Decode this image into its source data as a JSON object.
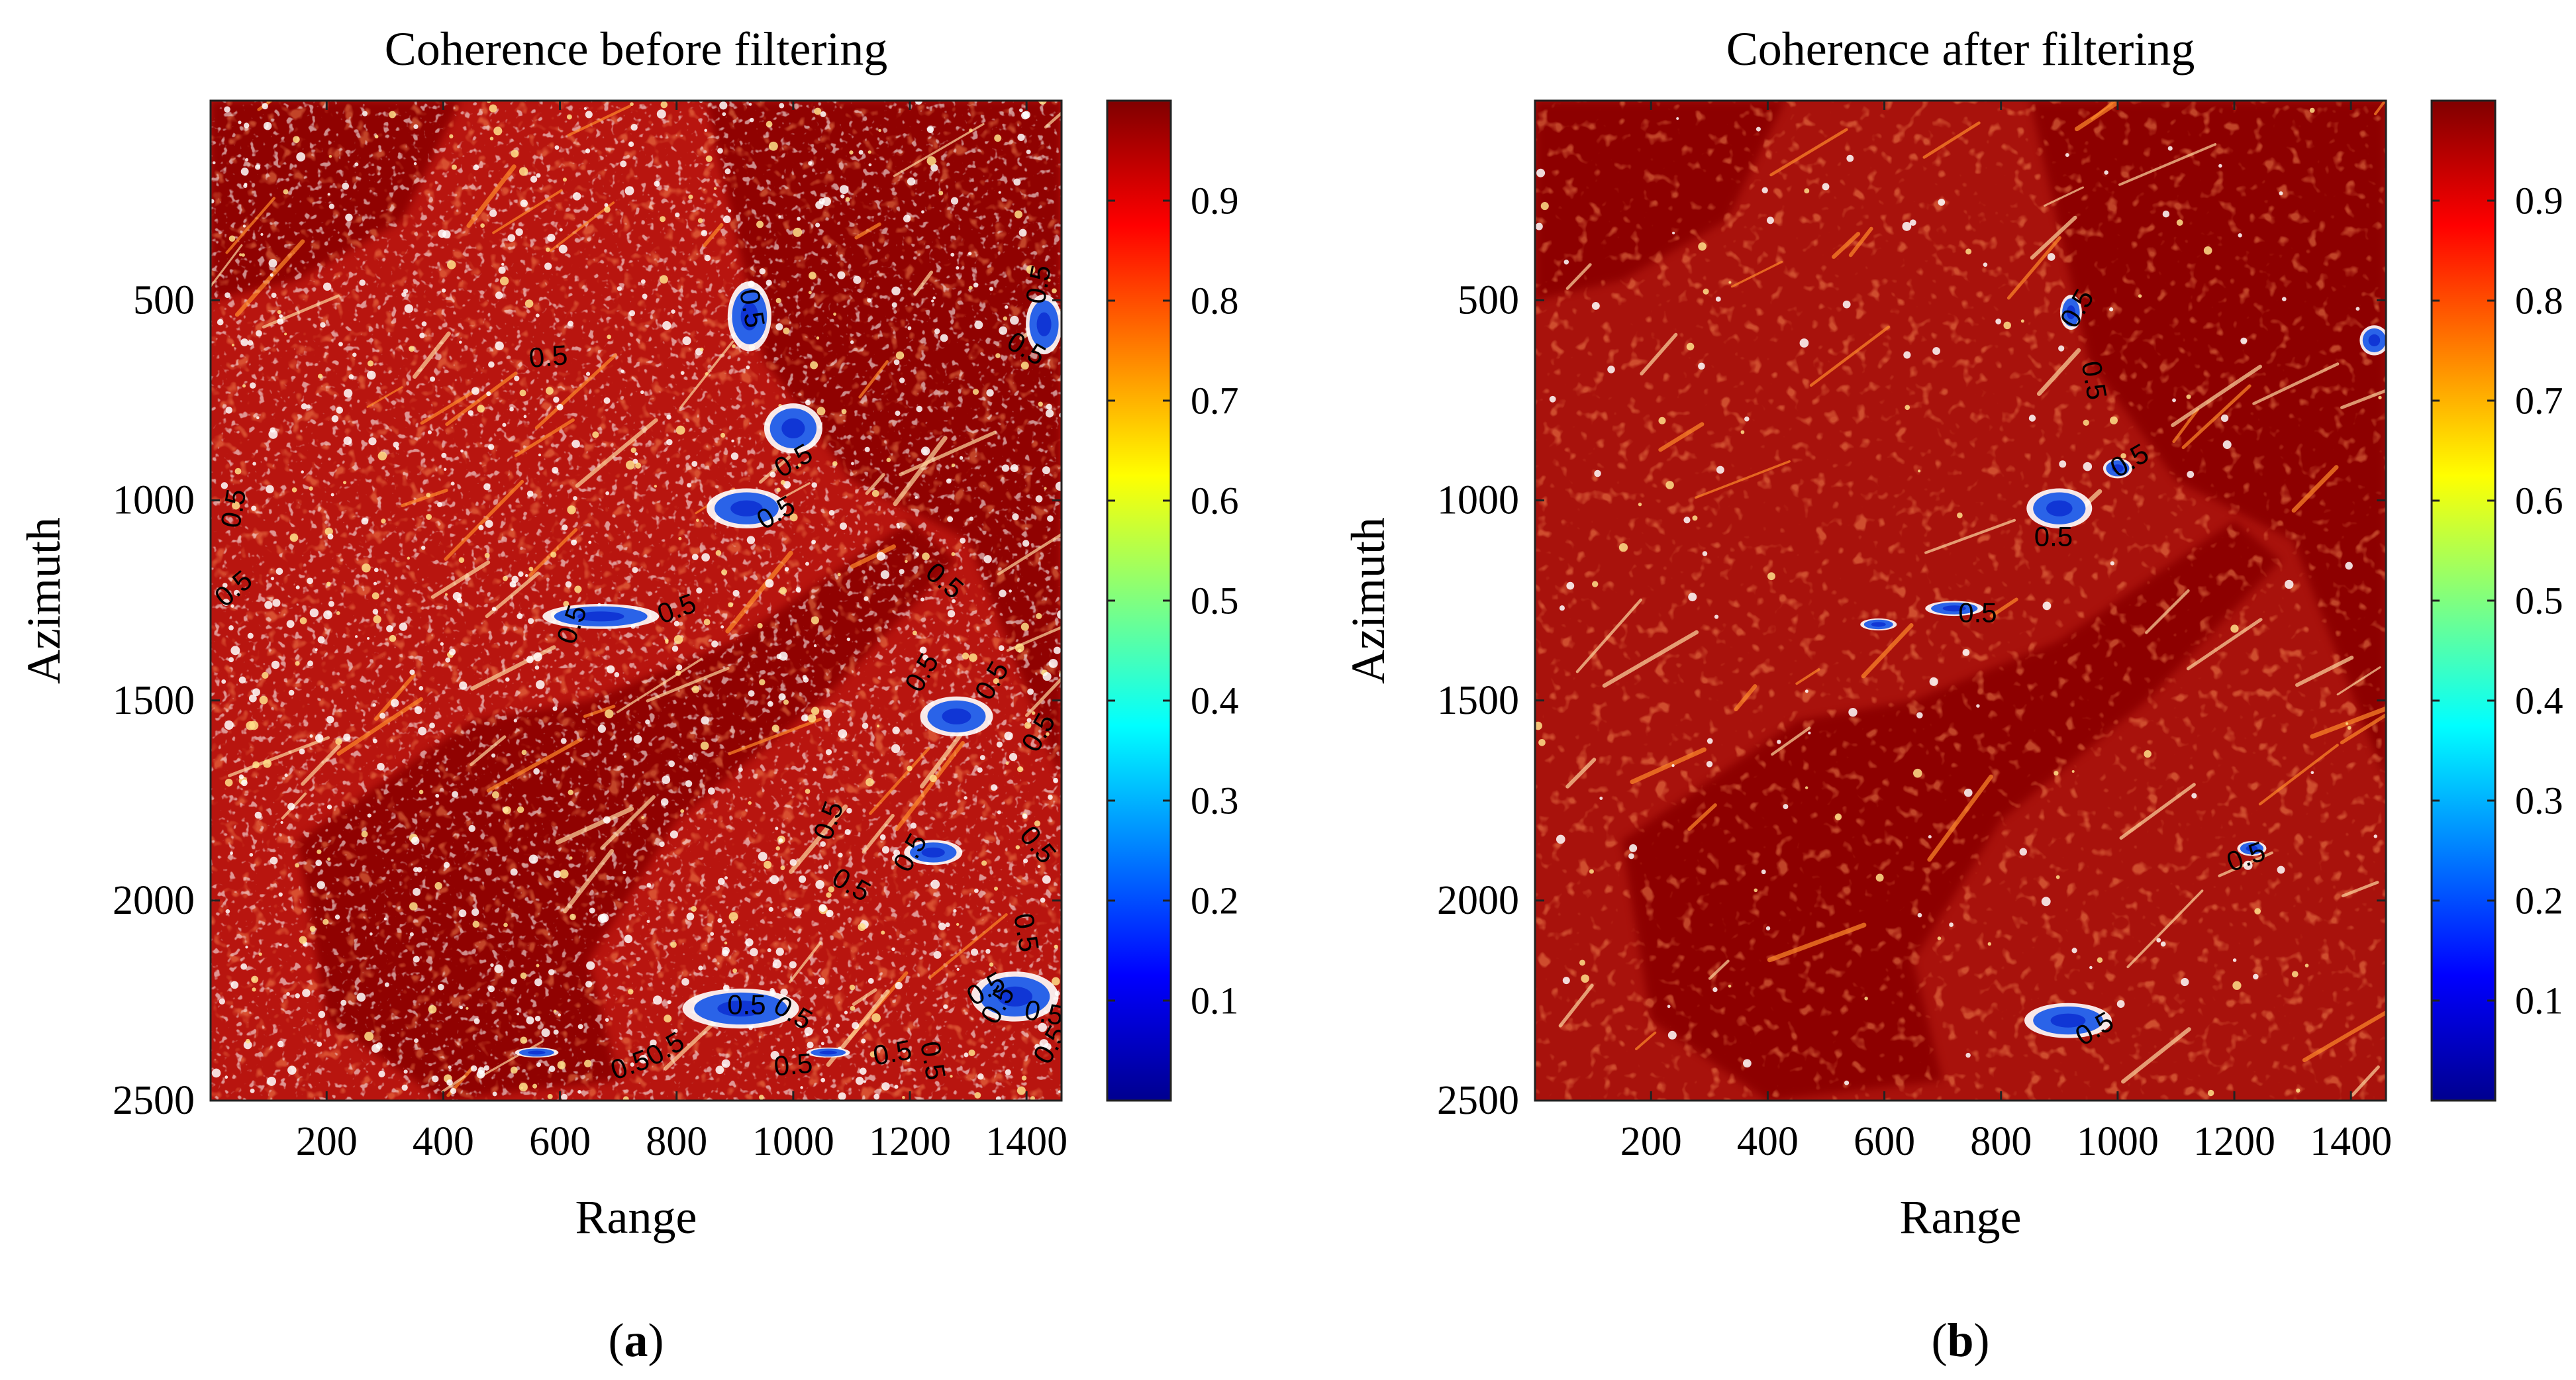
{
  "chart_data": [
    {
      "type": "heatmap",
      "panel_label": "(a)",
      "panel_letter": "a",
      "title": "Coherence before filtering",
      "xlabel": "Range",
      "ylabel": "Azimuth",
      "xlim": [
        1,
        1460
      ],
      "ylim": [
        1,
        2500
      ],
      "xticks": [
        200,
        400,
        600,
        800,
        1000,
        1200,
        1400
      ],
      "yticks": [
        500,
        1000,
        1500,
        2000,
        2500
      ],
      "colorbar": {
        "colormap": "jet",
        "range": [
          0,
          1
        ],
        "ticks": [
          0.1,
          0.2,
          0.3,
          0.4,
          0.5,
          0.6,
          0.7,
          0.8,
          0.9
        ]
      },
      "contour_level": 0.5,
      "contour_label": "0.5",
      "low_coherence_regions": [
        {
          "x": 925,
          "y": 540,
          "rx": 30,
          "ry": 70
        },
        {
          "x": 1000,
          "y": 820,
          "rx": 40,
          "ry": 50
        },
        {
          "x": 920,
          "y": 1020,
          "rx": 55,
          "ry": 40
        },
        {
          "x": 670,
          "y": 1290,
          "rx": 80,
          "ry": 25
        },
        {
          "x": 1430,
          "y": 560,
          "rx": 25,
          "ry": 60
        },
        {
          "x": 1240,
          "y": 1880,
          "rx": 40,
          "ry": 25
        },
        {
          "x": 910,
          "y": 2270,
          "rx": 80,
          "ry": 40
        },
        {
          "x": 1380,
          "y": 2240,
          "rx": 60,
          "ry": 50
        },
        {
          "x": 1280,
          "y": 1540,
          "rx": 50,
          "ry": 40
        },
        {
          "x": 560,
          "y": 2380,
          "rx": 30,
          "ry": 10
        },
        {
          "x": 1060,
          "y": 2380,
          "rx": 30,
          "ry": 10
        }
      ],
      "contour_labels": [
        {
          "x": 580,
          "y": 640,
          "angle": -5
        },
        {
          "x": 930,
          "y": 520,
          "angle": 80
        },
        {
          "x": 1420,
          "y": 460,
          "angle": -80
        },
        {
          "x": 1400,
          "y": 620,
          "angle": 30
        },
        {
          "x": 1000,
          "y": 900,
          "angle": -30
        },
        {
          "x": 970,
          "y": 1030,
          "angle": -30
        },
        {
          "x": 40,
          "y": 1020,
          "angle": -80
        },
        {
          "x": 40,
          "y": 1220,
          "angle": -40
        },
        {
          "x": 620,
          "y": 1310,
          "angle": -70
        },
        {
          "x": 800,
          "y": 1270,
          "angle": -20
        },
        {
          "x": 1260,
          "y": 1200,
          "angle": 40
        },
        {
          "x": 1220,
          "y": 1430,
          "angle": -60
        },
        {
          "x": 1340,
          "y": 1450,
          "angle": -60
        },
        {
          "x": 1420,
          "y": 1580,
          "angle": -60
        },
        {
          "x": 1060,
          "y": 1800,
          "angle": -70
        },
        {
          "x": 1100,
          "y": 1960,
          "angle": 30
        },
        {
          "x": 1200,
          "y": 1880,
          "angle": -60
        },
        {
          "x": 1420,
          "y": 1860,
          "angle": 50
        },
        {
          "x": 1400,
          "y": 2080,
          "angle": 80
        },
        {
          "x": 920,
          "y": 2260,
          "angle": 0
        },
        {
          "x": 1000,
          "y": 2280,
          "angle": 30
        },
        {
          "x": 720,
          "y": 2410,
          "angle": -20
        },
        {
          "x": 780,
          "y": 2370,
          "angle": -30
        },
        {
          "x": 1000,
          "y": 2410,
          "angle": -5
        },
        {
          "x": 1170,
          "y": 2380,
          "angle": -10
        },
        {
          "x": 1240,
          "y": 2400,
          "angle": 80
        },
        {
          "x": 1350,
          "y": 2260,
          "angle": -60
        },
        {
          "x": 1430,
          "y": 2280,
          "angle": 10
        },
        {
          "x": 1330,
          "y": 2220,
          "angle": -30
        },
        {
          "x": 1440,
          "y": 2360,
          "angle": -60
        }
      ]
    },
    {
      "type": "heatmap",
      "panel_label": "(b)",
      "panel_letter": "b",
      "title": "Coherence after filtering",
      "xlabel": "Range",
      "ylabel": "Azimuth",
      "xlim": [
        1,
        1460
      ],
      "ylim": [
        1,
        2500
      ],
      "xticks": [
        200,
        400,
        600,
        800,
        1000,
        1200,
        1400
      ],
      "yticks": [
        500,
        1000,
        1500,
        2000,
        2500
      ],
      "colorbar": {
        "colormap": "jet",
        "range": [
          0,
          1
        ],
        "ticks": [
          0.1,
          0.2,
          0.3,
          0.4,
          0.5,
          0.6,
          0.7,
          0.8,
          0.9
        ]
      },
      "contour_level": 0.5,
      "contour_label": "0.5",
      "low_coherence_regions": [
        {
          "x": 900,
          "y": 1020,
          "rx": 45,
          "ry": 40
        },
        {
          "x": 720,
          "y": 1270,
          "rx": 40,
          "ry": 15
        },
        {
          "x": 590,
          "y": 1310,
          "rx": 25,
          "ry": 12
        },
        {
          "x": 915,
          "y": 2300,
          "rx": 60,
          "ry": 35
        },
        {
          "x": 1230,
          "y": 1870,
          "rx": 20,
          "ry": 15
        },
        {
          "x": 1440,
          "y": 600,
          "rx": 20,
          "ry": 30
        },
        {
          "x": 920,
          "y": 530,
          "rx": 15,
          "ry": 35
        },
        {
          "x": 1000,
          "y": 920,
          "rx": 20,
          "ry": 20
        }
      ],
      "contour_labels": [
        {
          "x": 930,
          "y": 520,
          "angle": -60
        },
        {
          "x": 960,
          "y": 700,
          "angle": 80
        },
        {
          "x": 1020,
          "y": 900,
          "angle": -30
        },
        {
          "x": 890,
          "y": 1090,
          "angle": 0
        },
        {
          "x": 760,
          "y": 1280,
          "angle": 0
        },
        {
          "x": 1220,
          "y": 1890,
          "angle": -20
        },
        {
          "x": 960,
          "y": 2320,
          "angle": -30
        }
      ]
    }
  ]
}
